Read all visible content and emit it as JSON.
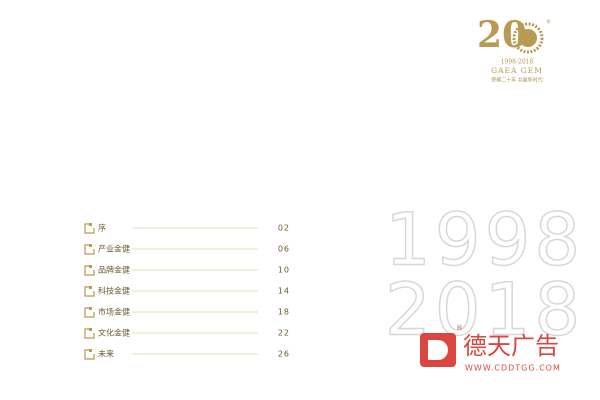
{
  "logo": {
    "number": "20",
    "registered": "®",
    "years": "1998-2018",
    "brand": "GAEA GEM",
    "slogan": "荣耀二十年  共赢新时代"
  },
  "toc": [
    {
      "title": "序",
      "page": "02"
    },
    {
      "title": "产业金健",
      "page": "06"
    },
    {
      "title": "品牌金健",
      "page": "10"
    },
    {
      "title": "科技金健",
      "page": "14"
    },
    {
      "title": "市场金健",
      "page": "18"
    },
    {
      "title": "文化金健",
      "page": "22"
    },
    {
      "title": "未来",
      "page": "26"
    }
  ],
  "decor": {
    "start_year": "1998",
    "end_year": "2018"
  },
  "watermark": {
    "name": "德天广告",
    "registered": "®",
    "url": "WWW.CDDTGG.COM"
  }
}
